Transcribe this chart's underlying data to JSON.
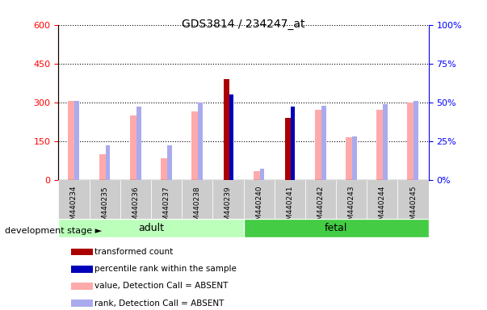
{
  "title": "GDS3814 / 234247_at",
  "samples": [
    "GSM440234",
    "GSM440235",
    "GSM440236",
    "GSM440237",
    "GSM440238",
    "GSM440239",
    "GSM440240",
    "GSM440241",
    "GSM440242",
    "GSM440243",
    "GSM440244",
    "GSM440245"
  ],
  "groups": [
    "adult",
    "adult",
    "adult",
    "adult",
    "adult",
    "adult",
    "fetal",
    "fetal",
    "fetal",
    "fetal",
    "fetal",
    "fetal"
  ],
  "transformed_count": [
    null,
    null,
    null,
    null,
    null,
    390,
    null,
    240,
    null,
    null,
    null,
    null
  ],
  "percentile_rank_val": [
    null,
    null,
    null,
    null,
    null,
    55,
    null,
    47,
    null,
    null,
    null,
    null
  ],
  "value_absent": [
    305,
    100,
    250,
    85,
    265,
    null,
    35,
    null,
    270,
    165,
    270,
    300
  ],
  "rank_absent": [
    51,
    22,
    47,
    22,
    50,
    null,
    7,
    null,
    48,
    28,
    49,
    51
  ],
  "ylim_left": [
    0,
    600
  ],
  "ylim_right": [
    0,
    100
  ],
  "yticks_left": [
    0,
    150,
    300,
    450,
    600
  ],
  "yticks_right": [
    0,
    25,
    50,
    75,
    100
  ],
  "color_transformed": "#aa0000",
  "color_percentile": "#0000bb",
  "color_value_absent": "#ffaaaa",
  "color_rank_absent": "#aaaaee",
  "adult_color": "#bbffbb",
  "fetal_color": "#44cc44",
  "figsize": [
    6.03,
    3.84
  ],
  "dpi": 100
}
